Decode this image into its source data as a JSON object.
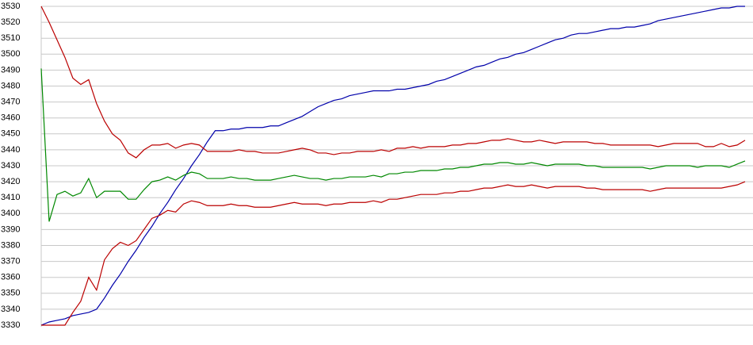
{
  "chart_data": {
    "type": "line",
    "ylim": [
      3330,
      3530
    ],
    "yticks": [
      3330,
      3340,
      3350,
      3360,
      3370,
      3380,
      3390,
      3400,
      3410,
      3420,
      3430,
      3440,
      3450,
      3460,
      3470,
      3480,
      3490,
      3500,
      3510,
      3520,
      3530
    ],
    "grid": true,
    "series": [
      {
        "color": "#0000aa",
        "values": [
          3330,
          3332,
          3333,
          3334,
          3336,
          3337,
          3338,
          3340,
          3347,
          3355,
          3362,
          3370,
          3377,
          3385,
          3392,
          3400,
          3407,
          3415,
          3422,
          3430,
          3437,
          3445,
          3452,
          3452,
          3453,
          3453,
          3454,
          3454,
          3454,
          3455,
          3455,
          3457,
          3459,
          3461,
          3464,
          3467,
          3469,
          3471,
          3472,
          3474,
          3475,
          3476,
          3477,
          3477,
          3477,
          3478,
          3478,
          3479,
          3480,
          3481,
          3483,
          3484,
          3486,
          3488,
          3490,
          3492,
          3493,
          3495,
          3497,
          3498,
          3500,
          3501,
          3503,
          3505,
          3507,
          3509,
          3510,
          3512,
          3513,
          3513,
          3514,
          3515,
          3516,
          3516,
          3517,
          3517,
          3518,
          3519,
          3521,
          3522,
          3523,
          3524,
          3525,
          3526,
          3527,
          3528,
          3529,
          3529,
          3530,
          3530
        ]
      },
      {
        "color": "#bb0000",
        "values": [
          3530,
          3520,
          3509,
          3498,
          3485,
          3481,
          3484,
          3469,
          3458,
          3450,
          3446,
          3438,
          3435,
          3440,
          3443,
          3443,
          3444,
          3441,
          3443,
          3444,
          3443,
          3439,
          3439,
          3439,
          3439,
          3440,
          3439,
          3439,
          3438,
          3438,
          3438,
          3439,
          3440,
          3441,
          3440,
          3438,
          3438,
          3437,
          3438,
          3438,
          3439,
          3439,
          3439,
          3440,
          3439,
          3441,
          3441,
          3442,
          3441,
          3442,
          3442,
          3442,
          3443,
          3443,
          3444,
          3444,
          3445,
          3446,
          3446,
          3447,
          3446,
          3445,
          3445,
          3446,
          3445,
          3444,
          3445,
          3445,
          3445,
          3445,
          3444,
          3444,
          3443,
          3443,
          3443,
          3443,
          3443,
          3443,
          3442,
          3443,
          3444,
          3444,
          3444,
          3444,
          3442,
          3442,
          3444,
          3442,
          3443,
          3446
        ]
      },
      {
        "color": "#008800",
        "values": [
          3491,
          3395,
          3412,
          3414,
          3411,
          3413,
          3422,
          3410,
          3414,
          3414,
          3414,
          3409,
          3409,
          3415,
          3420,
          3421,
          3423,
          3421,
          3424,
          3426,
          3425,
          3422,
          3422,
          3422,
          3423,
          3422,
          3422,
          3421,
          3421,
          3421,
          3422,
          3423,
          3424,
          3423,
          3422,
          3422,
          3421,
          3422,
          3422,
          3423,
          3423,
          3423,
          3424,
          3423,
          3425,
          3425,
          3426,
          3426,
          3427,
          3427,
          3427,
          3428,
          3428,
          3429,
          3429,
          3430,
          3431,
          3431,
          3432,
          3432,
          3431,
          3431,
          3432,
          3431,
          3430,
          3431,
          3431,
          3431,
          3431,
          3430,
          3430,
          3429,
          3429,
          3429,
          3429,
          3429,
          3429,
          3428,
          3429,
          3430,
          3430,
          3430,
          3430,
          3429,
          3430,
          3430,
          3430,
          3429,
          3431,
          3433
        ]
      },
      {
        "color": "#bb0000",
        "values": [
          3330,
          3330,
          3330,
          3330,
          3338,
          3345,
          3360,
          3352,
          3371,
          3378,
          3382,
          3380,
          3383,
          3390,
          3397,
          3399,
          3402,
          3401,
          3406,
          3408,
          3407,
          3405,
          3405,
          3405,
          3406,
          3405,
          3405,
          3404,
          3404,
          3404,
          3405,
          3406,
          3407,
          3406,
          3406,
          3406,
          3405,
          3406,
          3406,
          3407,
          3407,
          3407,
          3408,
          3407,
          3409,
          3409,
          3410,
          3411,
          3412,
          3412,
          3412,
          3413,
          3413,
          3414,
          3414,
          3415,
          3416,
          3416,
          3417,
          3418,
          3417,
          3417,
          3418,
          3417,
          3416,
          3417,
          3417,
          3417,
          3417,
          3416,
          3416,
          3415,
          3415,
          3415,
          3415,
          3415,
          3415,
          3414,
          3415,
          3416,
          3416,
          3416,
          3416,
          3416,
          3416,
          3416,
          3416,
          3417,
          3418,
          3420
        ]
      }
    ]
  }
}
